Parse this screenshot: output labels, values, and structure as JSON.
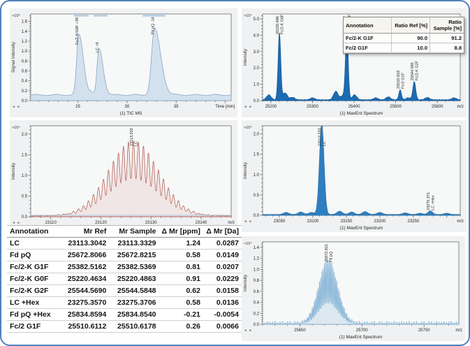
{
  "page": {
    "border_color": "#4f81bd",
    "chart_nav_icon": "◄ ◄"
  },
  "ratio_table": {
    "headers": [
      "Annotation",
      "Ratio Ref [%]",
      "Ratio Sample [%]"
    ],
    "rows": [
      [
        "Fc/2-K G1F",
        "90.0",
        "91.2"
      ],
      [
        "Fc/2 G1F",
        "10.0",
        "8.8"
      ]
    ]
  },
  "annotation_table": {
    "headers": [
      "Annotation",
      "Mr Ref",
      "Mr Sample",
      "Δ Mr [ppm]",
      "Δ Mr [Da]"
    ],
    "rows": [
      [
        "LC",
        "23113.3042",
        "23113.3329",
        "1.24",
        "0.0287"
      ],
      [
        "Fd pQ",
        "25672.8066",
        "25672.8215",
        "0.58",
        "0.0149"
      ],
      [
        "Fc/2-K G1F",
        "25382.5162",
        "25382.5369",
        "0.81",
        "0.0207"
      ],
      [
        "Fc/2-K G0F",
        "25220.4634",
        "25220.4863",
        "0.91",
        "0.0229"
      ],
      [
        "Fc/2-K G2F",
        "25544.5690",
        "25544.5848",
        "0.62",
        "0.0158"
      ],
      [
        "LC +Hex",
        "23275.3570",
        "23275.3706",
        "0.58",
        "0.0136"
      ],
      [
        "Fd pQ +Hex",
        "25834.8594",
        "25834.8540",
        "-0.21",
        "-0.0054"
      ],
      [
        "Fc/2 G1F",
        "25510.6112",
        "25510.6178",
        "0.26",
        "0.0066"
      ]
    ]
  },
  "chart_data": [
    {
      "id": "tic",
      "type": "area",
      "title": "(1) TIC MS",
      "xlabel": "Time [min]",
      "ylabel": "Signal Intensity",
      "y_exponent": "×10⁸",
      "xlim": [
        20.2,
        40.6
      ],
      "x_ticks": [
        25,
        30,
        35
      ],
      "ylim": [
        0,
        1.75
      ],
      "y_ticks": [
        0.0,
        0.2,
        0.4,
        0.6,
        0.8,
        1.0,
        1.2,
        1.4,
        1.6
      ],
      "baseline": 0.115,
      "peaks": [
        {
          "rt": 25.1,
          "height": 1.22,
          "sigma": 0.22,
          "label": "Fc/2-K/G0F +39"
        },
        {
          "rt": 27.15,
          "height": 0.93,
          "sigma": 0.2,
          "label": "LC +9"
        },
        {
          "rt": 32.8,
          "height": 1.34,
          "sigma": 0.3,
          "label": "Fd pQ -14"
        }
      ],
      "minor_bumps": [
        [
          26.35,
          0.05,
          0.15
        ]
      ],
      "integration_bars": [
        [
          24.6,
          26.1
        ],
        [
          26.6,
          28.0
        ],
        [
          31.6,
          33.9
        ]
      ],
      "colors": {
        "fill": "#d3e1ee",
        "stroke": "#7d9cba",
        "bar": "#a4c2dc"
      }
    },
    {
      "id": "fc2",
      "type": "spectrum-peaks",
      "title": "(1) MaxEnt Spectrum",
      "xlabel": "m/z",
      "ylabel": "Intensity",
      "y_exponent": "×10⁵",
      "xlim": [
        25180,
        25655
      ],
      "x_ticks": [
        25200,
        25300,
        25400,
        25500,
        25600
      ],
      "ylim": [
        0,
        5.3
      ],
      "y_ticks": [
        0.0,
        1.0,
        2.0,
        3.0,
        4.0,
        5.0
      ],
      "peaks": [
        {
          "mz": 25220.486,
          "height": 4.05,
          "sigma": 3.2,
          "label": "25220.486",
          "annotation": "Fc/2-K G0F"
        },
        {
          "mz": 25382.517,
          "height": 4.35,
          "sigma": 3.2,
          "label": "25382.517",
          "annotation": "Fc/2-K G1F"
        },
        {
          "mz": 25510.618,
          "height": 0.6,
          "sigma": 3.2,
          "label": "25510.618",
          "annotation": "Fc/2 G1F"
        },
        {
          "mz": 25544.585,
          "height": 1.1,
          "sigma": 3.5,
          "label": "25544.585",
          "annotation": "Fc/2-K G2F"
        }
      ],
      "noise_peaks": [
        [
          25195,
          0.3
        ],
        [
          25234,
          0.42
        ],
        [
          25252,
          0.15
        ],
        [
          25300,
          0.12
        ],
        [
          25356,
          0.52
        ],
        [
          25374,
          0.28
        ],
        [
          25401,
          0.3
        ],
        [
          25452,
          0.12
        ],
        [
          25482,
          0.18
        ],
        [
          25530,
          0.12
        ],
        [
          25576,
          0.14
        ],
        [
          25640,
          0.12
        ]
      ],
      "colors": {
        "fill": "#1b6bb3",
        "stroke": "#13578f"
      }
    },
    {
      "id": "lc_red",
      "type": "isotopic-line",
      "title": "(1) MaxEnt Spectrum",
      "xlabel": "m/z",
      "ylabel": "Intensity",
      "y_exponent": "×10⁴",
      "xlim": [
        23106,
        23146
      ],
      "x_ticks": [
        23110,
        23120,
        23130,
        23140
      ],
      "ylim": [
        0,
        2.2
      ],
      "y_ticks": [
        0.0,
        0.5,
        1.0,
        1.5,
        2.0
      ],
      "envelope": {
        "center": 23126.5,
        "sigma": 5.0,
        "height": 1.8,
        "spacing": 1,
        "peak_sigma": 0.3
      },
      "peak_label": {
        "mass": "23113.333",
        "annotation": "LC"
      },
      "colors": {
        "stroke": "#b2544b",
        "fill": "rgba(190,110,100,0.12)",
        "baseline": "#93bcda"
      }
    },
    {
      "id": "lc_blue",
      "type": "isotopic-fill",
      "title": "(1) MaxEnt Spectrum",
      "xlabel": "m/z",
      "ylabel": "Intensity",
      "y_exponent": "×10⁴",
      "xlim": [
        23025,
        23320
      ],
      "x_ticks": [
        23050,
        23100,
        23150,
        23200,
        23250
      ],
      "ylim": [
        0,
        2.2
      ],
      "y_ticks": [
        0.0,
        0.5,
        1.0,
        1.5,
        2.0
      ],
      "clusters": [
        {
          "center": 23113.3,
          "sigma": 3.4,
          "height": 1.78,
          "spacing": 1,
          "peak_sigma": 0.5,
          "mass": "23113.333",
          "annotation": "LC"
        },
        {
          "center": 23275.4,
          "sigma": 3.4,
          "height": 0.07,
          "spacing": 1,
          "peak_sigma": 0.5,
          "mass": "23275.371",
          "annotation": "LC +Hex"
        }
      ],
      "noise_peaks": [
        [
          23060,
          0.05
        ],
        [
          23082,
          0.06
        ],
        [
          23098,
          0.05
        ],
        [
          23140,
          0.08
        ],
        [
          23158,
          0.06
        ],
        [
          23178,
          0.07
        ],
        [
          23200,
          0.05
        ],
        [
          23238,
          0.04
        ],
        [
          23260,
          0.03
        ],
        [
          23300,
          0.03
        ]
      ],
      "colors": {
        "fill": "#2e7fc0",
        "stroke": "#2a6fa8"
      }
    },
    {
      "id": "fdpq",
      "type": "isotopic-spikes",
      "title": "(1) MaxEnt Spectrum",
      "xlabel": "m/z",
      "ylabel": "Intensity",
      "y_exponent": "×10⁴",
      "xlim": [
        25620,
        25778
      ],
      "x_ticks": [
        25650,
        25700,
        25750
      ],
      "ylim": [
        0,
        1.5
      ],
      "y_ticks": [
        0.0,
        0.2,
        0.4,
        0.6,
        0.8,
        1.0,
        1.2,
        1.4
      ],
      "envelope": {
        "center": 25672.8,
        "sigma": 7.5,
        "height": 1.17,
        "spacing": 1,
        "peak_sigma": 0.26
      },
      "peak_label": {
        "mass": "25672.821",
        "annotation": "Fd pQ"
      },
      "noise_amp": 0.05,
      "colors": {
        "stroke": "#7fb0d4",
        "fill": "rgba(170,205,230,0.35)"
      }
    }
  ]
}
